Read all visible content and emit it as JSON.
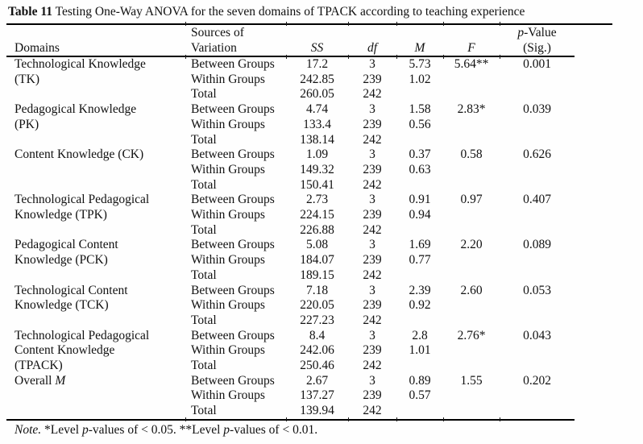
{
  "title": {
    "bold": "Table 11",
    "rest": " Testing One-Way ANOVA for the seven domains of TPACK according to teaching experience"
  },
  "header": {
    "domains": "Domains",
    "sources_line1": "Sources of",
    "sources_line2": "Variation",
    "ss": "SS",
    "df": "df",
    "m": "M",
    "f": "F",
    "p_italic": "p",
    "p_rest": "-Value",
    "sig": "(Sig.)"
  },
  "groups": [
    {
      "domain_lines": [
        [
          {
            "t": "Technological Knowledge"
          }
        ],
        [
          {
            "t": "(TK)"
          }
        ]
      ],
      "rows": [
        {
          "source": "Between Groups",
          "ss": "17.2",
          "df": "3",
          "m": "5.73",
          "f": "5.64**",
          "p": "0.001"
        },
        {
          "source": "Within Groups",
          "ss": "242.85",
          "df": "239",
          "m": "1.02",
          "f": "",
          "p": ""
        },
        {
          "source": "Total",
          "ss": "260.05",
          "df": "242",
          "m": "",
          "f": "",
          "p": ""
        }
      ]
    },
    {
      "domain_lines": [
        [
          {
            "t": "Pedagogical Knowledge"
          }
        ],
        [
          {
            "t": "(PK)"
          }
        ]
      ],
      "rows": [
        {
          "source": "Between Groups",
          "ss": "4.74",
          "df": "3",
          "m": "1.58",
          "f": "2.83*",
          "p": "0.039"
        },
        {
          "source": "Within Groups",
          "ss": "133.4",
          "df": "239",
          "m": "0.56",
          "f": "",
          "p": ""
        },
        {
          "source": "Total",
          "ss": "138.14",
          "df": "242",
          "m": "",
          "f": "",
          "p": ""
        }
      ]
    },
    {
      "domain_lines": [
        [
          {
            "t": "Content Knowledge (CK)"
          }
        ]
      ],
      "rows": [
        {
          "source": "Between Groups",
          "ss": "1.09",
          "df": "3",
          "m": "0.37",
          "f": "0.58",
          "p": "0.626"
        },
        {
          "source": "Within Groups",
          "ss": "149.32",
          "df": "239",
          "m": "0.63",
          "f": "",
          "p": ""
        },
        {
          "source": "Total",
          "ss": "150.41",
          "df": "242",
          "m": "",
          "f": "",
          "p": ""
        }
      ]
    },
    {
      "domain_lines": [
        [
          {
            "t": "Technological Pedagogical"
          }
        ],
        [
          {
            "t": "Knowledge (TPK)"
          }
        ]
      ],
      "rows": [
        {
          "source": "Between Groups",
          "ss": "2.73",
          "df": "3",
          "m": "0.91",
          "f": "0.97",
          "p": "0.407"
        },
        {
          "source": "Within Groups",
          "ss": "224.15",
          "df": "239",
          "m": "0.94",
          "f": "",
          "p": ""
        },
        {
          "source": "Total",
          "ss": "226.88",
          "df": "242",
          "m": "",
          "f": "",
          "p": ""
        }
      ]
    },
    {
      "domain_lines": [
        [
          {
            "t": "Pedagogical Content"
          }
        ],
        [
          {
            "t": "Knowledge (PCK)"
          }
        ]
      ],
      "rows": [
        {
          "source": "Between Groups",
          "ss": "5.08",
          "df": "3",
          "m": "1.69",
          "f": "2.20",
          "p": "0.089"
        },
        {
          "source": "Within Groups",
          "ss": "184.07",
          "df": "239",
          "m": "0.77",
          "f": "",
          "p": ""
        },
        {
          "source": "Total",
          "ss": "189.15",
          "df": "242",
          "m": "",
          "f": "",
          "p": ""
        }
      ]
    },
    {
      "domain_lines": [
        [
          {
            "t": "Technological Content"
          }
        ],
        [
          {
            "t": "Knowledge (TCK)"
          }
        ]
      ],
      "rows": [
        {
          "source": "Between Groups",
          "ss": "7.18",
          "df": "3",
          "m": "2.39",
          "f": "2.60",
          "p": "0.053"
        },
        {
          "source": "Within Groups",
          "ss": "220.05",
          "df": "239",
          "m": "0.92",
          "f": "",
          "p": ""
        },
        {
          "source": "Total",
          "ss": "227.23",
          "df": "242",
          "m": "",
          "f": "",
          "p": ""
        }
      ]
    },
    {
      "domain_lines": [
        [
          {
            "t": "Technological Pedagogical"
          }
        ],
        [
          {
            "t": "Content Knowledge"
          }
        ],
        [
          {
            "t": "(TPACK)"
          }
        ]
      ],
      "rows": [
        {
          "source": "Between Groups",
          "ss": "8.4",
          "df": "3",
          "m": "2.8",
          "f": "2.76*",
          "p": "0.043"
        },
        {
          "source": "Within Groups",
          "ss": "242.06",
          "df": "239",
          "m": "1.01",
          "f": "",
          "p": ""
        },
        {
          "source": "Total",
          "ss": "250.46",
          "df": "242",
          "m": "",
          "f": "",
          "p": ""
        }
      ]
    },
    {
      "domain_lines": [
        [
          {
            "t": "Overall "
          },
          {
            "t": "M",
            "i": true
          }
        ]
      ],
      "rows": [
        {
          "source": "Between Groups",
          "ss": "2.67",
          "df": "3",
          "m": "0.89",
          "f": "1.55",
          "p": "0.202"
        },
        {
          "source": "Within Groups",
          "ss": "137.27",
          "df": "239",
          "m": "0.57",
          "f": "",
          "p": ""
        },
        {
          "source": "Total",
          "ss": "139.94",
          "df": "242",
          "m": "",
          "f": "",
          "p": ""
        }
      ]
    }
  ],
  "note": {
    "runs": [
      {
        "t": "Note.",
        "i": true
      },
      {
        "t": " *Level ",
        "i": false
      },
      {
        "t": "p",
        "i": true
      },
      {
        "t": "-values of < 0.05. **Level ",
        "i": false
      },
      {
        "t": "p",
        "i": true
      },
      {
        "t": "-values of < 0.01.",
        "i": false
      }
    ]
  }
}
